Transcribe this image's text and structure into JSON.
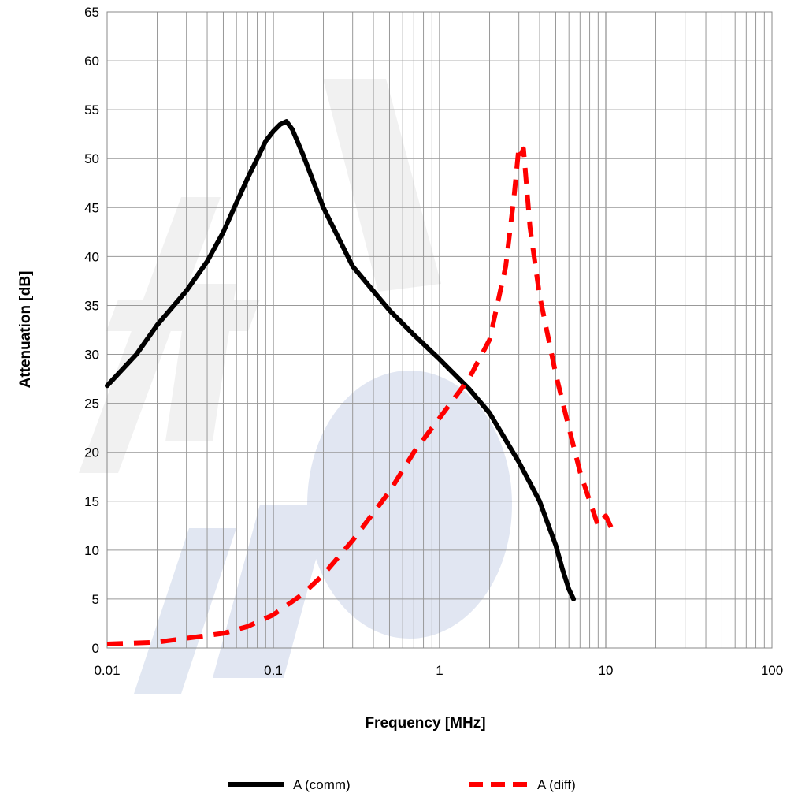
{
  "chart_data": {
    "type": "line",
    "title": "",
    "xlabel": "Frequency [MHz]",
    "ylabel": "Attenuation [dB]",
    "xscale": "log",
    "xlim": [
      0.01,
      100
    ],
    "ylim": [
      0,
      65
    ],
    "x_ticks": [
      "0.01",
      "0.1",
      "1",
      "10",
      "100"
    ],
    "y_ticks": [
      "0",
      "5",
      "10",
      "15",
      "20",
      "25",
      "30",
      "35",
      "40",
      "45",
      "50",
      "55",
      "60",
      "65"
    ],
    "grid": true,
    "legend": "bottom",
    "series": [
      {
        "name": "A (comm)",
        "color": "#000000",
        "style": "solid",
        "x": [
          0.01,
          0.015,
          0.02,
          0.03,
          0.04,
          0.05,
          0.06,
          0.07,
          0.08,
          0.09,
          0.1,
          0.11,
          0.12,
          0.13,
          0.15,
          0.2,
          0.3,
          0.5,
          0.7,
          1.0,
          1.5,
          2.0,
          3.0,
          4.0,
          5.0,
          5.5,
          6.0,
          6.4
        ],
        "y": [
          26.8,
          30.0,
          33.0,
          36.5,
          39.5,
          42.5,
          45.5,
          48.0,
          50.0,
          51.8,
          52.8,
          53.5,
          53.8,
          53.0,
          50.5,
          45.0,
          39.0,
          34.5,
          32.0,
          29.5,
          26.5,
          24.0,
          19.0,
          15.0,
          10.5,
          8.0,
          6.0,
          5.0
        ]
      },
      {
        "name": "A (diff)",
        "color": "#ff0000",
        "style": "dashed",
        "x": [
          0.01,
          0.02,
          0.03,
          0.05,
          0.07,
          0.1,
          0.15,
          0.2,
          0.3,
          0.5,
          0.7,
          1.0,
          1.5,
          2.0,
          2.5,
          2.8,
          3.0,
          3.1,
          3.2,
          3.5,
          4.0,
          5.0,
          6.0,
          7.0,
          8.0,
          9.0,
          10.0,
          11.0
        ],
        "y": [
          0.4,
          0.6,
          1.0,
          1.5,
          2.2,
          3.4,
          5.5,
          7.5,
          11.0,
          16.0,
          20.0,
          23.5,
          27.5,
          31.5,
          39.0,
          46.0,
          51.2,
          50.5,
          51.0,
          43.0,
          36.0,
          28.0,
          22.5,
          18.0,
          15.0,
          12.5,
          13.5,
          12.0
        ]
      }
    ]
  }
}
